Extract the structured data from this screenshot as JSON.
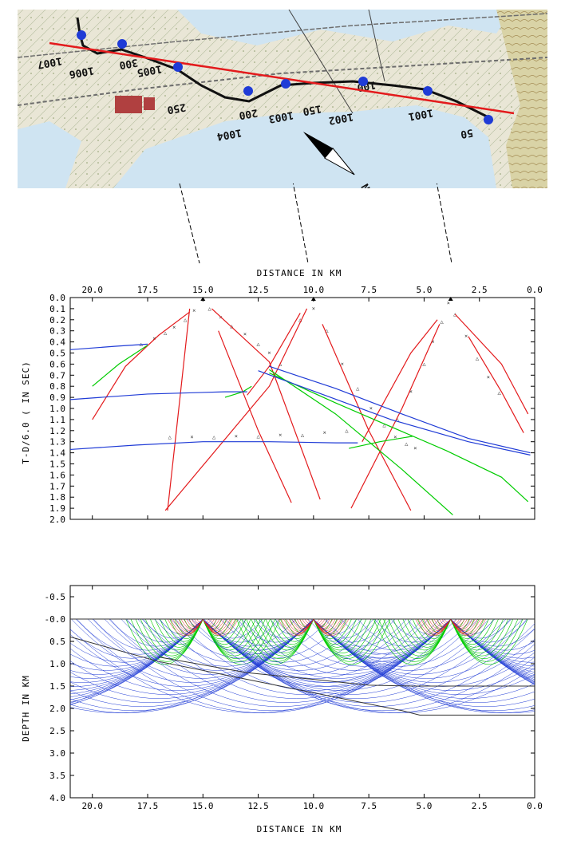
{
  "map": {
    "north_label": "N",
    "elevation_labels": [
      "1007",
      "1006",
      "300",
      "1005",
      "250",
      "1004",
      "200",
      "1003",
      "150",
      "1002",
      "100",
      "1001",
      "50"
    ],
    "colors": {
      "water": "#cfe4f2",
      "land": "#e9e6d6",
      "profile_line": "#e31a1c",
      "station": "#1f3bd6",
      "track": "#111111"
    }
  },
  "chart_data": [
    {
      "type": "line",
      "title": "",
      "xlabel": "DISTANCE IN KM",
      "ylabel": "T-D/6.0 ( IN SEC)",
      "xlim": [
        21,
        0
      ],
      "ylim": [
        0.0,
        2.0
      ],
      "x_axis_position": "top",
      "x_ticks": [
        "20.0",
        "17.5",
        "15.0",
        "12.5",
        "10.0",
        "7.5",
        "5.0",
        "2.5",
        "0.0"
      ],
      "y_ticks": [
        "0.0",
        "0.1",
        "0.2",
        "0.3",
        "0.4",
        "0.5",
        "0.6",
        "0.7",
        "0.8",
        "0.9",
        "1.0",
        "1.1",
        "1.2",
        "1.3",
        "1.4",
        "1.5",
        "1.6",
        "1.7",
        "1.8",
        "1.9",
        "2.0"
      ],
      "shot_positions": [
        15.0,
        10.0,
        3.8
      ],
      "series": [
        {
          "color": "#e31a1c",
          "x": [
            15.6,
            17.0,
            18.5,
            20.0
          ],
          "y": [
            0.13,
            0.34,
            0.62,
            1.1
          ]
        },
        {
          "color": "#e31a1c",
          "x": [
            15.6,
            16.2,
            16.6
          ],
          "y": [
            0.1,
            1.2,
            1.92
          ]
        },
        {
          "color": "#e31a1c",
          "x": [
            14.6,
            12.0,
            9.7
          ],
          "y": [
            0.1,
            0.58,
            1.82
          ]
        },
        {
          "color": "#e31a1c",
          "x": [
            14.3,
            12.5,
            11.0
          ],
          "y": [
            0.3,
            1.2,
            1.85
          ]
        },
        {
          "color": "#e31a1c",
          "x": [
            10.6,
            12.0,
            13.0
          ],
          "y": [
            0.14,
            0.62,
            0.88
          ]
        },
        {
          "color": "#e31a1c",
          "x": [
            10.3,
            12.0,
            16.7
          ],
          "y": [
            0.1,
            0.8,
            1.92
          ]
        },
        {
          "color": "#e31a1c",
          "x": [
            9.6,
            7.5,
            5.6
          ],
          "y": [
            0.24,
            1.2,
            1.92
          ]
        },
        {
          "color": "#e31a1c",
          "x": [
            4.4,
            5.6,
            7.8
          ],
          "y": [
            0.2,
            0.5,
            1.3
          ]
        },
        {
          "color": "#e31a1c",
          "x": [
            4.3,
            6.0,
            8.3
          ],
          "y": [
            0.24,
            1.0,
            1.9
          ]
        },
        {
          "color": "#e31a1c",
          "x": [
            3.6,
            1.5,
            0.3
          ],
          "y": [
            0.15,
            0.6,
            1.05
          ]
        },
        {
          "color": "#e31a1c",
          "x": [
            3.0,
            1.5,
            0.5
          ],
          "y": [
            0.35,
            0.85,
            1.22
          ]
        },
        {
          "color": "#00cc00",
          "x": [
            17.5,
            18.8,
            20.0
          ],
          "y": [
            0.43,
            0.6,
            0.8
          ]
        },
        {
          "color": "#00cc00",
          "x": [
            12.8,
            13.2,
            14.0
          ],
          "y": [
            0.8,
            0.85,
            0.9
          ]
        },
        {
          "color": "#00cc00",
          "x": [
            12.0,
            9.0,
            6.0,
            3.7
          ],
          "y": [
            0.65,
            1.05,
            1.55,
            1.96
          ]
        },
        {
          "color": "#00cc00",
          "x": [
            12.0,
            9.0,
            4.0,
            1.5,
            0.3
          ],
          "y": [
            0.68,
            0.95,
            1.38,
            1.62,
            1.84
          ]
        },
        {
          "color": "#00cc00",
          "x": [
            8.4,
            7.0,
            5.5
          ],
          "y": [
            1.36,
            1.3,
            1.25
          ]
        },
        {
          "color": "#1f3bd6",
          "x": [
            21.0,
            19.0,
            17.5
          ],
          "y": [
            0.47,
            0.44,
            0.42
          ]
        },
        {
          "color": "#1f3bd6",
          "x": [
            21.0,
            17.5,
            14.0,
            13.0
          ],
          "y": [
            0.92,
            0.87,
            0.85,
            0.85
          ]
        },
        {
          "color": "#1f3bd6",
          "x": [
            21.0,
            18.0,
            15.0,
            12.0,
            9.0,
            8.0
          ],
          "y": [
            1.37,
            1.33,
            1.3,
            1.3,
            1.31,
            1.31
          ]
        },
        {
          "color": "#1f3bd6",
          "x": [
            12.0,
            9.0,
            6.0,
            3.0,
            0.2
          ],
          "y": [
            0.62,
            0.82,
            1.05,
            1.27,
            1.4
          ]
        },
        {
          "color": "#1f3bd6",
          "x": [
            12.5,
            9.5,
            6.5,
            3.0,
            0.2
          ],
          "y": [
            0.66,
            0.88,
            1.1,
            1.3,
            1.42
          ]
        }
      ],
      "observed_points": [
        {
          "x": [
            17.8,
            17.2,
            16.7,
            16.3,
            15.8,
            15.4,
            14.7,
            14.2,
            13.7,
            13.1,
            12.5,
            12.0,
            11.5
          ],
          "y": [
            0.42,
            0.37,
            0.32,
            0.27,
            0.2,
            0.12,
            0.1,
            0.18,
            0.26,
            0.33,
            0.42,
            0.5,
            0.6
          ]
        },
        {
          "x": [
            10.6,
            10.0,
            9.4,
            8.7,
            8.0,
            7.4,
            6.8,
            6.3,
            5.8,
            5.4
          ],
          "y": [
            0.2,
            0.1,
            0.3,
            0.6,
            0.82,
            1.0,
            1.15,
            1.26,
            1.32,
            1.36
          ]
        },
        {
          "x": [
            6.2,
            5.6,
            5.0,
            4.6,
            4.2,
            3.9,
            3.6,
            3.1,
            2.6,
            2.1,
            1.6
          ],
          "y": [
            1.1,
            0.85,
            0.6,
            0.4,
            0.22,
            0.05,
            0.15,
            0.35,
            0.55,
            0.72,
            0.86
          ]
        },
        {
          "x": [
            16.5,
            15.5,
            14.5,
            13.5,
            12.5,
            11.5,
            10.5,
            9.5,
            8.5
          ],
          "y": [
            1.26,
            1.26,
            1.26,
            1.25,
            1.25,
            1.24,
            1.24,
            1.22,
            1.2
          ]
        }
      ]
    },
    {
      "type": "line",
      "title": "",
      "xlabel": "DISTANCE IN KM",
      "ylabel": "DEPTH IN KM",
      "xlim": [
        21,
        0
      ],
      "ylim": [
        -0.75,
        4.0
      ],
      "x_ticks": [
        "20.0",
        "17.5",
        "15.0",
        "12.5",
        "10.0",
        "7.5",
        "5.0",
        "2.5",
        "0.0"
      ],
      "y_ticks": [
        "-0.5",
        "-0.0",
        "0.5",
        "1.0",
        "1.5",
        "2.0",
        "2.5",
        "3.0",
        "3.5",
        "4.0"
      ],
      "shot_positions": [
        15.0,
        10.0,
        3.8
      ],
      "layer_boundaries": [
        {
          "x": [
            21.0,
            0.0
          ],
          "y": [
            0.0,
            0.0
          ]
        },
        {
          "x": [
            17.0,
            13.0,
            10.0,
            7.5,
            5.5,
            0.0
          ],
          "y": [
            0.85,
            1.2,
            1.35,
            1.48,
            1.5,
            1.5
          ]
        },
        {
          "x": [
            21.0,
            17.0,
            13.0,
            9.0,
            6.0,
            5.2,
            0.0
          ],
          "y": [
            0.4,
            0.95,
            1.35,
            1.75,
            2.05,
            2.15,
            2.15
          ]
        }
      ],
      "ray_colors": {
        "direct": "#e31a1c",
        "refracted_mid": "#00cc00",
        "deep": "#1f3bd6"
      }
    }
  ]
}
